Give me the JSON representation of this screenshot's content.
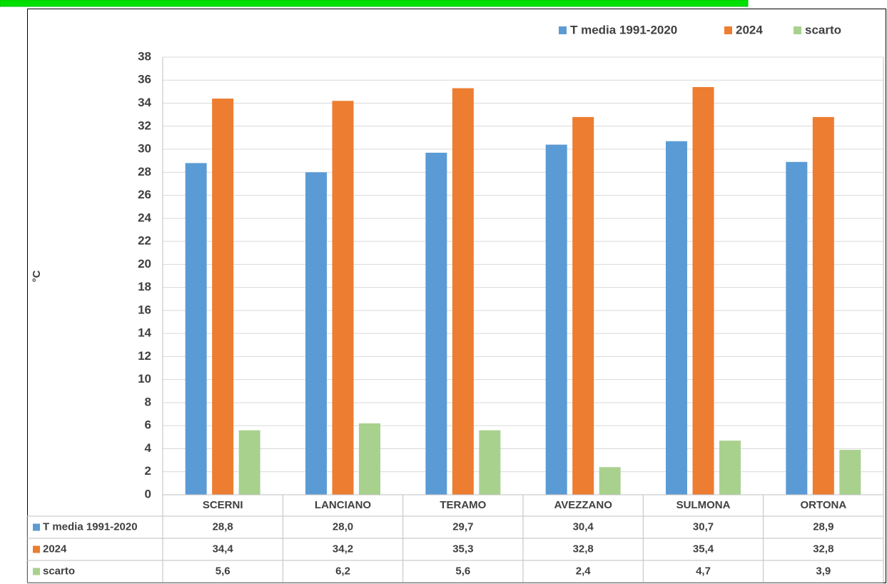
{
  "chart_data": {
    "type": "bar",
    "y_label": "°C",
    "categories": [
      "SCERNI",
      "LANCIANO",
      "TERAMO",
      "AVEZZANO",
      "SULMONA",
      "ORTONA"
    ],
    "series": [
      {
        "name": "T media 1991-2020",
        "color": "#5b9bd5",
        "values": [
          28.8,
          28.0,
          29.7,
          30.4,
          30.7,
          28.9
        ],
        "value_labels": [
          "28,8",
          "28,0",
          "29,7",
          "30,4",
          "30,7",
          "28,9"
        ]
      },
      {
        "name": "2024",
        "color": "#ed7d31",
        "values": [
          34.4,
          34.2,
          35.3,
          32.8,
          35.4,
          32.8
        ],
        "value_labels": [
          "34,4",
          "34,2",
          "35,3",
          "32,8",
          "35,4",
          "32,8"
        ]
      },
      {
        "name": "scarto",
        "color": "#a9d18e",
        "values": [
          5.6,
          6.2,
          5.6,
          2.4,
          4.7,
          3.9
        ],
        "value_labels": [
          "5,6",
          "6,2",
          "5,6",
          "2,4",
          "4,7",
          "3,9"
        ]
      }
    ],
    "ylim": [
      0,
      38
    ],
    "yticks": [
      0,
      2,
      4,
      6,
      8,
      10,
      12,
      14,
      16,
      18,
      20,
      22,
      24,
      26,
      28,
      30,
      32,
      34,
      36,
      38
    ],
    "grid": true,
    "legend": "top-right"
  }
}
